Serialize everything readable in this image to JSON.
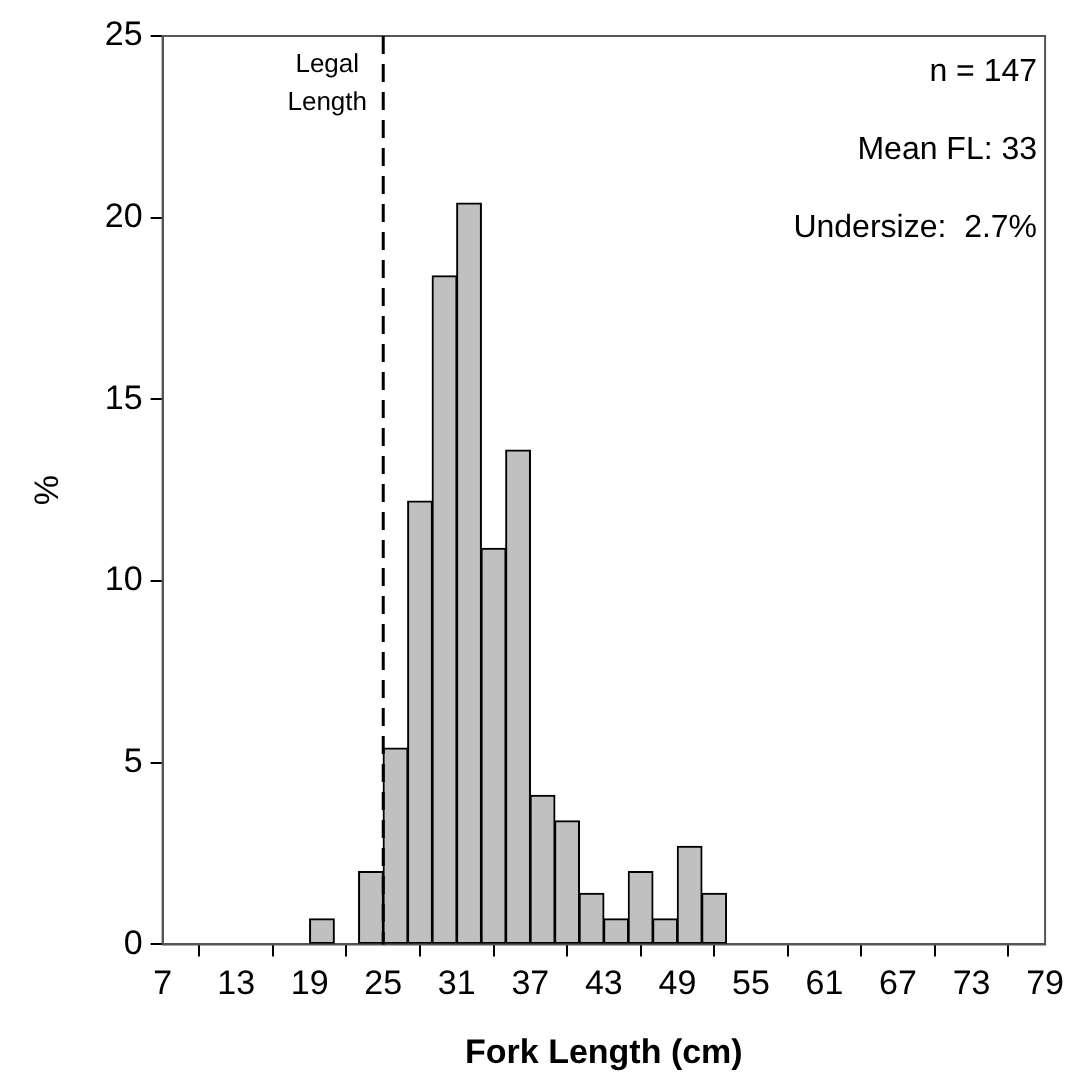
{
  "chart_data": {
    "type": "histogram",
    "xlabel": "Fork Length (cm)",
    "ylabel": "%",
    "bins": [
      19,
      21,
      23,
      25,
      27,
      29,
      31,
      33,
      35,
      37,
      39,
      41,
      43,
      45,
      47,
      49,
      51,
      53
    ],
    "values": [
      0.7,
      0,
      2,
      5.4,
      12.2,
      18.4,
      20.4,
      10.9,
      13.6,
      4.1,
      3.4,
      1.4,
      0.7,
      2,
      0.7,
      2.7,
      1.4
    ],
    "color": "#c0c0c0",
    "xlim": [
      7,
      79
    ],
    "xticks": [
      7,
      13,
      19,
      25,
      31,
      37,
      43,
      49,
      55,
      61,
      67,
      73,
      79
    ],
    "ylim": [
      0,
      25
    ],
    "yticks": [
      0,
      5,
      10,
      15,
      20,
      25
    ],
    "grid": false,
    "legend": false,
    "ref_lines": [
      {
        "axis": "x",
        "value": 25,
        "label": "Legal Length",
        "line_style": "dashed",
        "color": "#000000"
      }
    ],
    "annotations": [
      "n = 147",
      "Mean FL: 33",
      "Undersize:  2.7%"
    ]
  }
}
